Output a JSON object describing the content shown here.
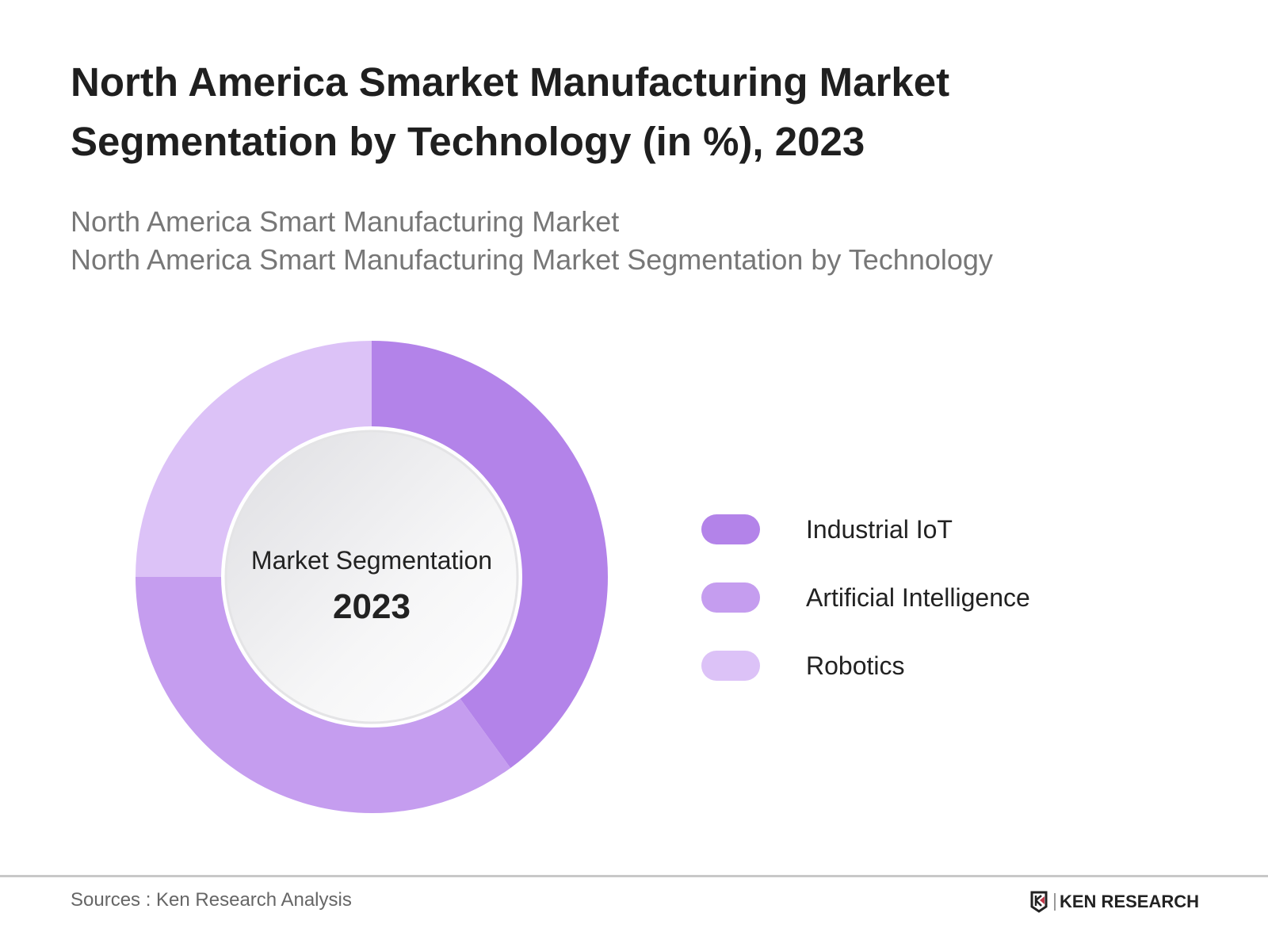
{
  "title_lines": [
    "North America Smarket Manufacturing Market",
    "Segmentation by Technology (in %), 2023"
  ],
  "subtitle_lines": [
    "North America Smart Manufacturing Market",
    "North America Smart Manufacturing Market Segmentation by Technology"
  ],
  "chart_data": {
    "type": "pie",
    "variant": "donut",
    "title": "North America Smarket Manufacturing Market Segmentation by Technology (in %), 2023",
    "center_label": "Market Segmentation",
    "center_value": "2023",
    "categories": [
      "Industrial IoT",
      "Artificial Intelligence",
      "Robotics"
    ],
    "values": [
      40,
      35,
      25
    ],
    "colors": [
      "#b383e9",
      "#c59def",
      "#dcc2f7"
    ],
    "legend_position": "right"
  },
  "footer": {
    "source": "Sources : Ken Research Analysis",
    "logo_text": "KEN RESEARCH"
  }
}
